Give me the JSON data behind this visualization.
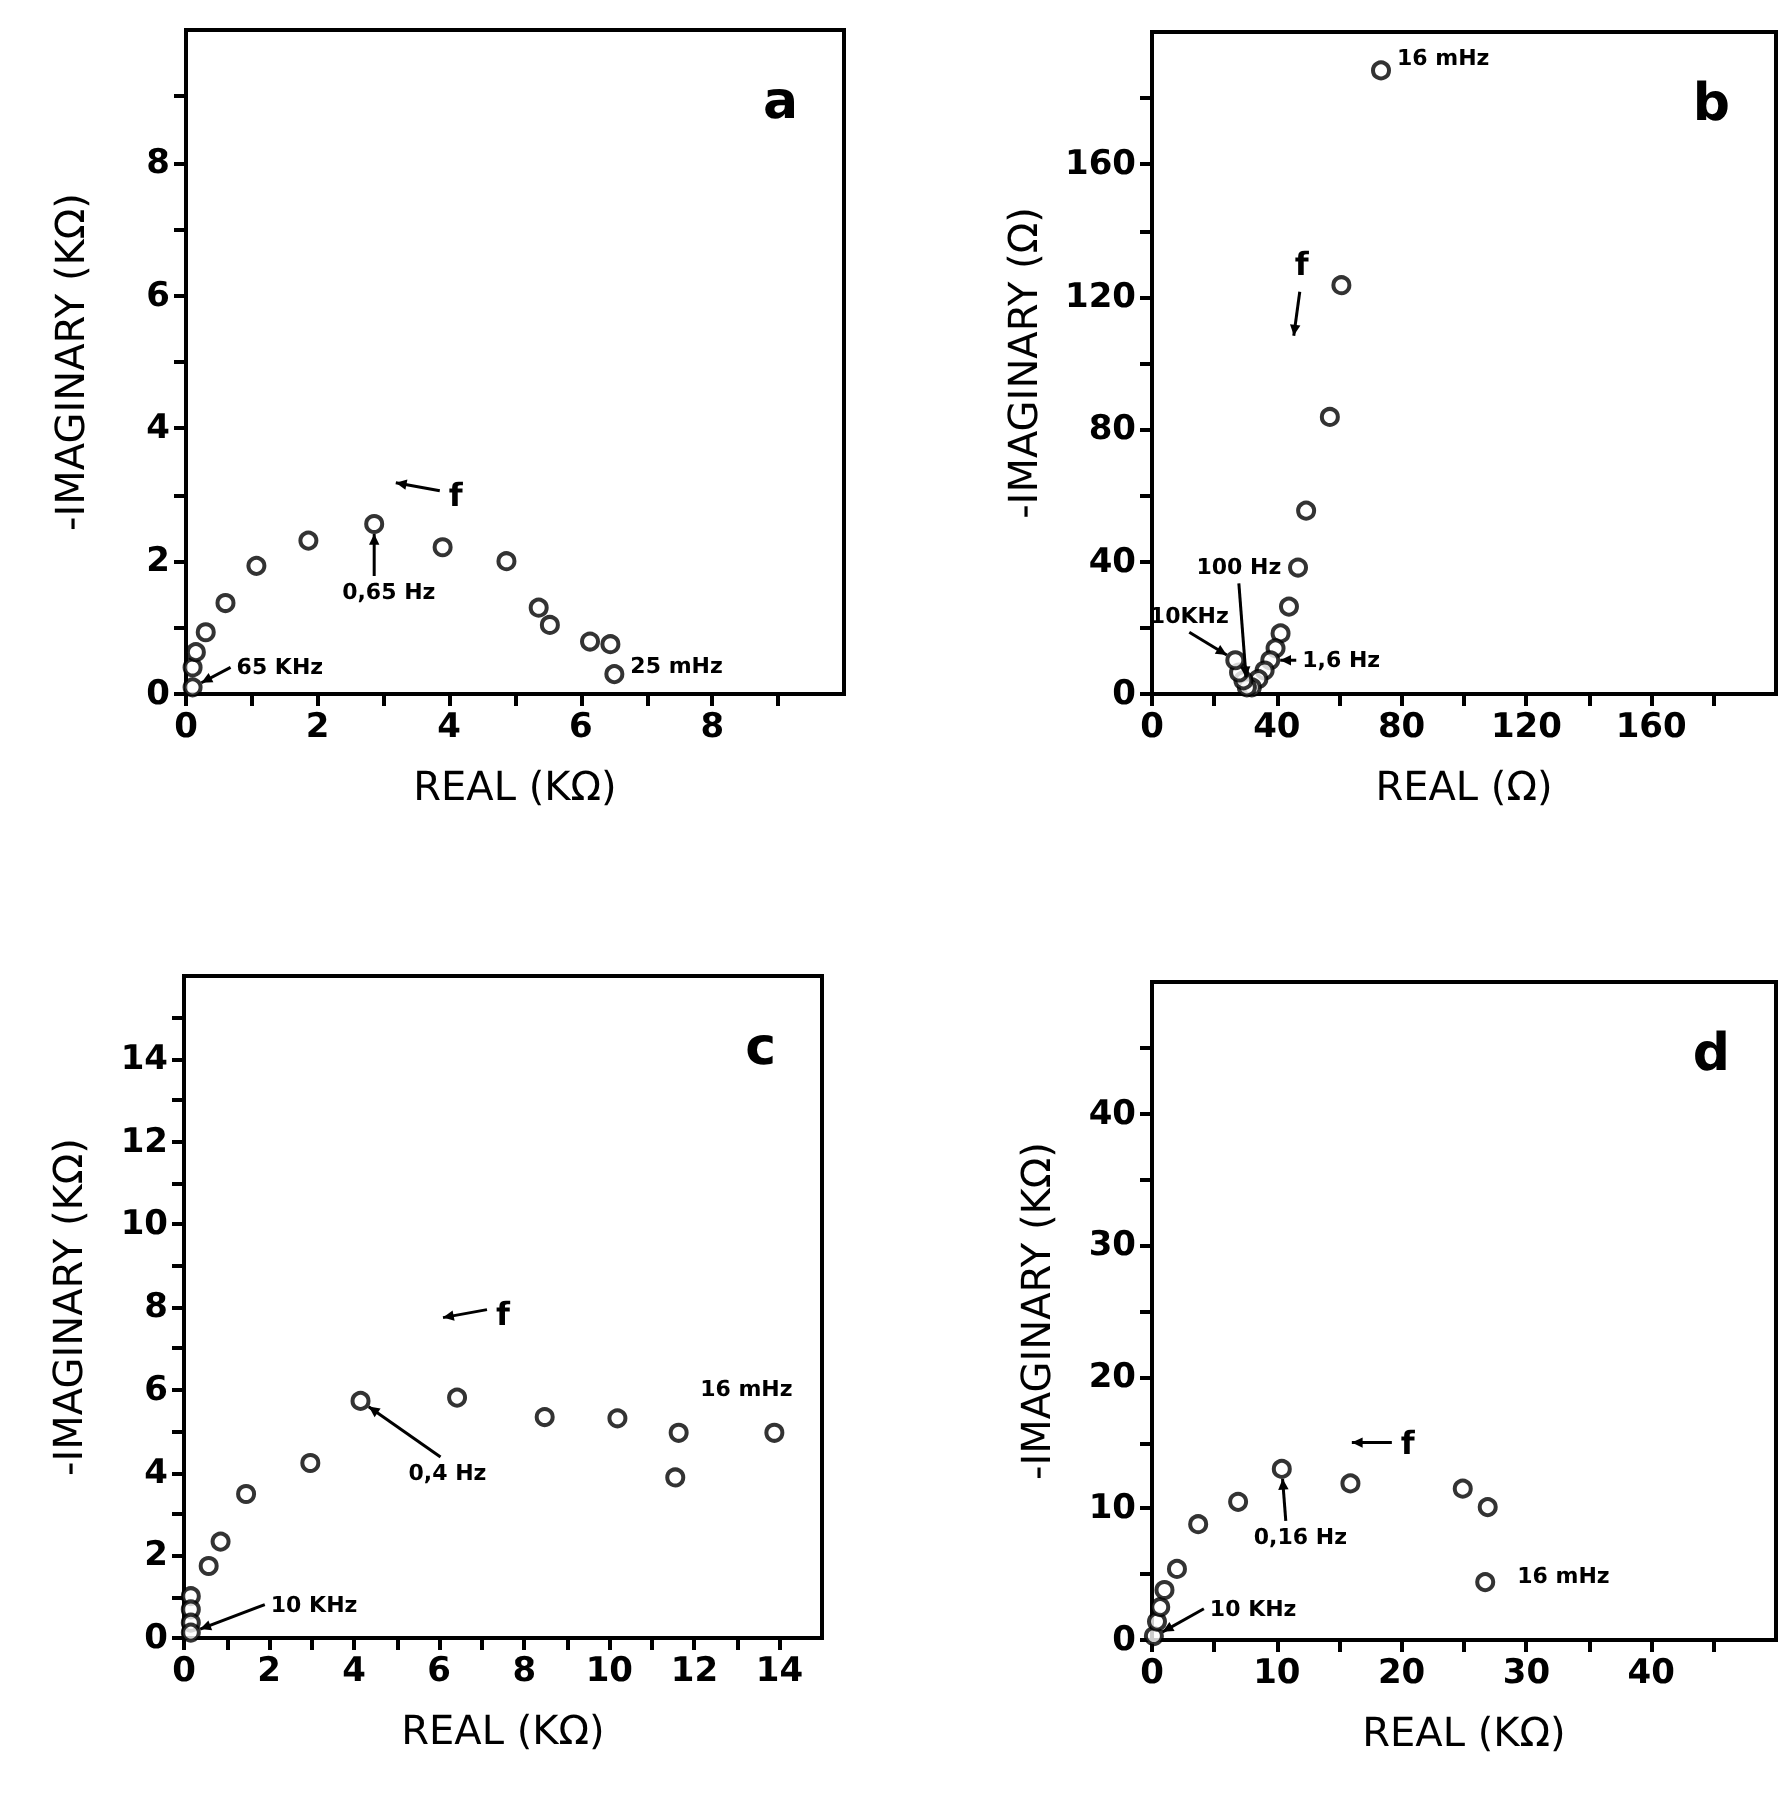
{
  "chart_data": [
    {
      "type": "scatter",
      "title": "a",
      "xlabel": "REAL (KΩ)",
      "ylabel": "-IMAGINARY (KΩ)",
      "marker": "circle",
      "series": [
        {
          "color": "#000000",
          "x": [
            0.1,
            0.1,
            0.15,
            0.3,
            0.6,
            1.07,
            1.86,
            2.86,
            3.9,
            4.87,
            5.36,
            5.53,
            6.14,
            6.45,
            6.51
          ],
          "values": [
            0.1,
            0.4,
            0.63,
            0.93,
            1.37,
            1.93,
            2.31,
            2.56,
            2.21,
            2.0,
            1.3,
            1.04,
            0.79,
            0.75,
            0.3
          ]
        }
      ],
      "xlim": [
        0,
        10
      ],
      "ylim": [
        0,
        10
      ],
      "xticks": [
        0,
        {
          "value": 1,
          "label": null
        },
        2,
        {
          "value": 3,
          "label": null
        },
        4,
        {
          "value": 5,
          "label": null
        },
        6,
        {
          "value": 7,
          "label": null
        },
        8,
        {
          "value": 9,
          "label": null
        }
      ],
      "yticks": [
        0,
        {
          "value": 1,
          "label": null
        },
        2,
        {
          "value": 3,
          "label": null
        },
        4,
        {
          "value": 5,
          "label": null
        },
        6,
        {
          "value": 7,
          "label": null
        },
        8,
        {
          "value": 9,
          "label": null
        }
      ],
      "annotations": [
        {
          "text": "65 KHz",
          "x": 0.1,
          "y": 0.1
        },
        {
          "text": "0,65 Hz",
          "x": 2.86,
          "y": 2.56
        },
        {
          "text": "25 mHz",
          "x": 6.51,
          "y": 0.3
        },
        "f"
      ]
    },
    {
      "type": "scatter",
      "title": "b",
      "xlabel": "REAL (Ω)",
      "ylabel": "-IMAGINARY (Ω)",
      "marker": "circle",
      "series": [
        {
          "color": "#000000",
          "x": [
            73.4,
            60.7,
            57.0,
            49.4,
            46.8,
            43.9,
            41.2,
            39.6,
            37.9,
            36.1,
            34.1,
            32.0,
            30.4,
            29.3,
            27.9,
            26.7
          ],
          "values": [
            188.4,
            123.5,
            83.7,
            55.4,
            38.2,
            26.4,
            18.3,
            13.8,
            10.2,
            7.1,
            4.5,
            2.0,
            2.0,
            4.1,
            6.5,
            10.2
          ]
        }
      ],
      "xlim": [
        0,
        200
      ],
      "ylim": [
        0,
        200
      ],
      "xticks": [
        0,
        {
          "value": 20,
          "label": null
        },
        40,
        {
          "value": 60,
          "label": null
        },
        80,
        {
          "value": 100,
          "label": null
        },
        120,
        {
          "value": 140,
          "label": null
        },
        160,
        {
          "value": 180,
          "label": null
        }
      ],
      "yticks": [
        0,
        {
          "value": 20,
          "label": null
        },
        40,
        {
          "value": 60,
          "label": null
        },
        80,
        {
          "value": 100,
          "label": null
        },
        120,
        {
          "value": 140,
          "label": null
        },
        160,
        {
          "value": 180,
          "label": null
        }
      ],
      "annotations": [
        {
          "text": "16 mHz",
          "x": 73.4,
          "y": 188.4
        },
        {
          "text": "100 Hz",
          "x": 30.4,
          "y": 2.0
        },
        {
          "text": "10KHz",
          "x": 26.7,
          "y": 10.2
        },
        {
          "text": "1,6 Hz",
          "x": 37.9,
          "y": 10.2
        },
        "f"
      ]
    },
    {
      "type": "scatter",
      "title": "c",
      "xlabel": "REAL (KΩ)",
      "ylabel": "-IMAGINARY (KΩ)",
      "marker": "circle",
      "series": [
        {
          "color": "#000000",
          "x": [
            0.16,
            0.16,
            0.16,
            0.16,
            0.58,
            0.86,
            1.46,
            2.97,
            4.15,
            6.42,
            8.48,
            10.19,
            11.63,
            11.55,
            13.88
          ],
          "values": [
            1.01,
            0.69,
            0.37,
            0.13,
            1.74,
            2.33,
            3.48,
            4.23,
            5.73,
            5.81,
            5.34,
            5.31,
            4.96,
            3.88,
            4.96
          ]
        }
      ],
      "xlim": [
        0,
        15
      ],
      "ylim": [
        0,
        16
      ],
      "xticks": [
        0,
        {
          "value": 1,
          "label": null
        },
        2,
        {
          "value": 3,
          "label": null
        },
        4,
        {
          "value": 5,
          "label": null
        },
        6,
        {
          "value": 7,
          "label": null
        },
        8,
        {
          "value": 9,
          "label": null
        },
        10,
        {
          "value": 11,
          "label": null
        },
        12,
        {
          "value": 13,
          "label": null
        },
        14
      ],
      "yticks": [
        0,
        {
          "value": 1,
          "label": null
        },
        2,
        {
          "value": 3,
          "label": null
        },
        4,
        {
          "value": 5,
          "label": null
        },
        6,
        {
          "value": 7,
          "label": null
        },
        8,
        {
          "value": 9,
          "label": null
        },
        10,
        {
          "value": 11,
          "label": null
        },
        12,
        {
          "value": 13,
          "label": null
        },
        14,
        {
          "value": 15,
          "label": null
        }
      ],
      "annotations": [
        {
          "text": "10 KHz",
          "x": 0.16,
          "y": 0.13
        },
        {
          "text": "0,4 Hz",
          "x": 4.15,
          "y": 5.73
        },
        {
          "text": "16 mHz",
          "x": 13.88,
          "y": 4.96
        },
        "f"
      ]
    },
    {
      "type": "scatter",
      "title": "d",
      "xlabel": "REAL (KΩ)",
      "ylabel": "-IMAGINARY (KΩ)",
      "marker": "circle",
      "series": [
        {
          "color": "#000000",
          "x": [
            0.15,
            0.4,
            0.66,
            1.0,
            2.0,
            3.7,
            6.9,
            10.4,
            15.9,
            24.9,
            26.9,
            26.7
          ],
          "values": [
            0.3,
            1.4,
            2.5,
            3.8,
            5.4,
            8.8,
            10.5,
            13.0,
            11.9,
            11.5,
            10.1,
            4.4
          ]
        }
      ],
      "xlim": [
        0,
        50
      ],
      "ylim": [
        0,
        50
      ],
      "xticks": [
        0,
        {
          "value": 5,
          "label": null
        },
        10,
        {
          "value": 15,
          "label": null
        },
        20,
        {
          "value": 25,
          "label": null
        },
        30,
        {
          "value": 35,
          "label": null
        },
        40,
        {
          "value": 45,
          "label": null
        }
      ],
      "yticks": [
        0,
        {
          "value": 5,
          "label": null
        },
        10,
        {
          "value": 15,
          "label": null
        },
        20,
        {
          "value": 25,
          "label": null
        },
        30,
        {
          "value": 35,
          "label": null
        },
        40,
        {
          "value": 45,
          "label": null
        }
      ],
      "annotations": [
        {
          "text": "10 KHz",
          "x": 0.15,
          "y": 0.25
        },
        {
          "text": "0,16 Hz",
          "x": 10.4,
          "y": 13.0
        },
        {
          "text": "16 mHz",
          "x": 26.7,
          "y": 4.4
        },
        "f"
      ]
    }
  ]
}
